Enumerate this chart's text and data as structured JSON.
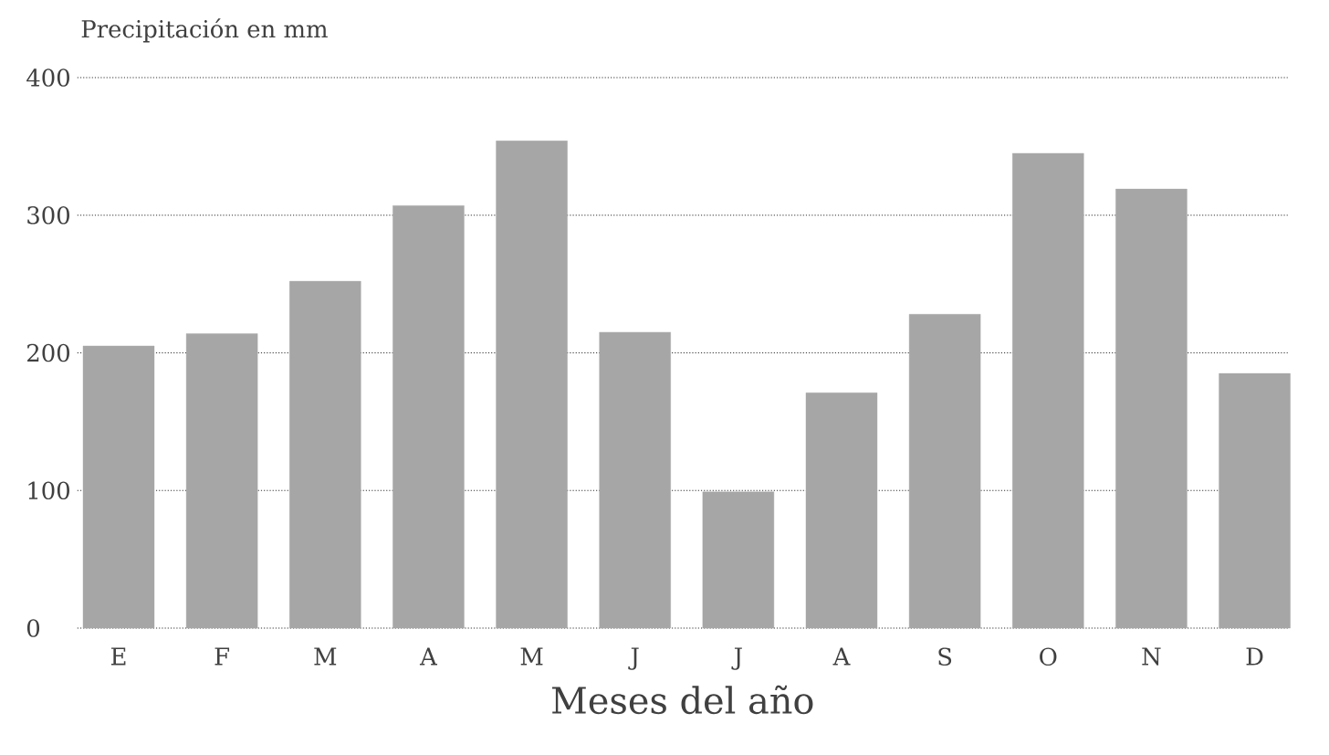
{
  "chart_data": {
    "type": "bar",
    "ylabel": "Precipitación en mm",
    "xlabel": "Meses del año",
    "categories": [
      "E",
      "F",
      "M",
      "A",
      "M",
      "J",
      "J",
      "A",
      "S",
      "O",
      "N",
      "D"
    ],
    "values": [
      205,
      214,
      252,
      307,
      354,
      215,
      99,
      171,
      228,
      345,
      319,
      185
    ],
    "color": "#a6a6a6",
    "ylim": [
      0,
      400
    ],
    "yticks": [
      0,
      100,
      200,
      300,
      400
    ],
    "grid": "y"
  }
}
